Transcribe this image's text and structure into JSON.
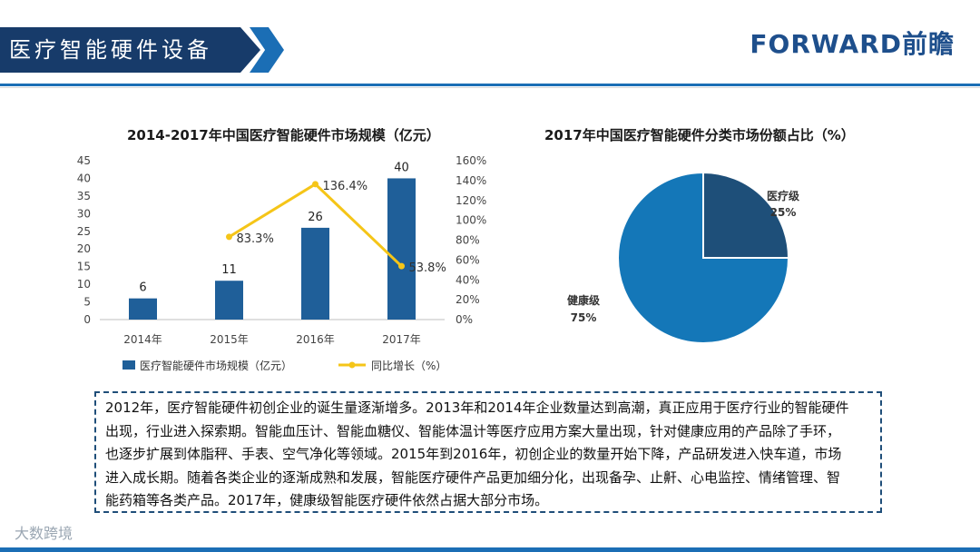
{
  "header": {
    "title": "医疗智能硬件设备",
    "logo": "FORWARD前瞻"
  },
  "colors": {
    "primary": "#173b6a",
    "accent": "#1b6eb5",
    "bar": "#1f5f99",
    "line": "#f5c518",
    "pie_large": "#1477b8",
    "pie_small": "#1e4f79"
  },
  "chart_data": [
    {
      "type": "bar",
      "title": "2014-2017年中国医疗智能硬件市场规模（亿元）",
      "categories": [
        "2014年",
        "2015年",
        "2016年",
        "2017年"
      ],
      "series": [
        {
          "name": "医疗智能硬件市场规模（亿元）",
          "values": [
            6,
            11,
            26,
            40
          ],
          "axis": "left",
          "labels": [
            "6",
            "11",
            "26",
            "40"
          ]
        },
        {
          "name": "同比增长（%）",
          "type": "line",
          "axis": "right",
          "values": [
            null,
            83.3,
            136.4,
            53.8
          ],
          "labels": [
            "",
            "83.3%",
            "136.4%",
            "53.8%"
          ]
        }
      ],
      "ylim_left": [
        0,
        45
      ],
      "ylim_right": [
        0,
        160
      ],
      "left_ticks": [
        "0",
        "5",
        "10",
        "15",
        "20",
        "25",
        "30",
        "35",
        "40",
        "45"
      ],
      "right_ticks": [
        "0%",
        "20%",
        "40%",
        "60%",
        "80%",
        "100%",
        "120%",
        "140%",
        "160%"
      ],
      "legend_position": "bottom"
    },
    {
      "type": "pie",
      "title": "2017年中国医疗智能硬件分类市场份额占比（%）",
      "slices": [
        {
          "name": "医疗级",
          "value": 25,
          "label": "25%"
        },
        {
          "name": "健康级",
          "value": 75,
          "label": "75%"
        }
      ]
    }
  ],
  "textbox": {
    "lines": [
      "2012年，医疗智能硬件初创企业的诞生量逐渐增多。2013年和2014年企业数量达到高潮，真正应用于医疗行业的智能硬件",
      "出现，行业进入探索期。智能血压计、智能血糖仪、智能体温计等医疗应用方案大量出现，针对健康应用的产品除了手环，",
      "也逐步扩展到体脂秤、手表、空气净化等领域。2015年到2016年，初创企业的数量开始下降，产品研发进入快车道，市场",
      "进入成长期。随着各类企业的逐渐成熟和发展，智能医疗硬件产品更加细分化，出现备孕、止鼾、心电监控、情绪管理、智",
      "能药箱等各类产品。2017年，健康级智能医疗硬件依然占据大部分市场。"
    ]
  },
  "footer": {
    "signature": "大数跨境"
  }
}
